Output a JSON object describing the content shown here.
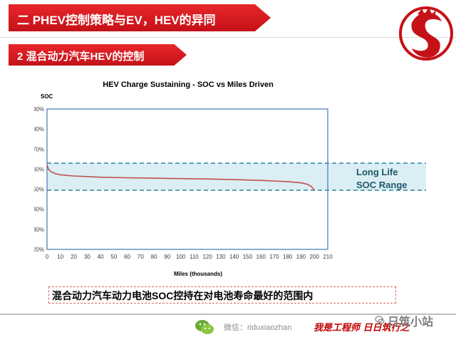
{
  "header": {
    "title": "二 PHEV控制策略与EV，HEV的异同",
    "subtitle": "2 混合动力汽车HEV的控制"
  },
  "chart_data": {
    "type": "line",
    "title": "HEV Charge Sustaining - SOC vs Miles Driven",
    "xlabel": "Miles (thousands)",
    "ylabel": "SOC",
    "xlim": [
      0,
      210
    ],
    "ylim": [
      20,
      90
    ],
    "x_ticks": [
      0,
      10,
      20,
      30,
      40,
      50,
      60,
      70,
      80,
      90,
      100,
      110,
      120,
      130,
      140,
      150,
      160,
      170,
      180,
      190,
      200,
      210
    ],
    "y_ticks": [
      "20%",
      "30%",
      "40%",
      "50%",
      "60%",
      "70%",
      "80%",
      "90%"
    ],
    "grid": false,
    "series": [
      {
        "color": "#c0504d",
        "x": [
          0,
          1,
          3,
          6,
          10,
          20,
          40,
          60,
          80,
          100,
          120,
          140,
          160,
          180,
          190,
          195,
          198,
          200
        ],
        "y": [
          62,
          60,
          58.8,
          57.8,
          57.2,
          56.6,
          56.0,
          55.7,
          55.5,
          55.3,
          55.1,
          54.8,
          54.4,
          53.8,
          53.2,
          52.4,
          51.2,
          49.5
        ]
      }
    ],
    "band": {
      "low": 49.5,
      "high": 63,
      "label_lines": [
        "Long Life",
        "SOC Range"
      ]
    }
  },
  "caption": "混合动力汽车动力电池SOC控持在对电池寿命最好的范围内",
  "footer": {
    "wechat": "微信：riduxiaozhan",
    "slogan": "我是工程师 日日筑行之",
    "watermark": "日筑小站"
  }
}
